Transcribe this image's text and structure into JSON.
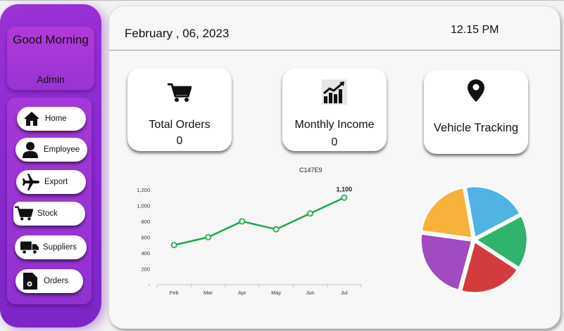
{
  "sidebar": {
    "greeting": "Good Morning",
    "user": "Admin",
    "nav": [
      {
        "label": "Home",
        "icon": "home-icon"
      },
      {
        "label": "Employee",
        "icon": "user-icon"
      },
      {
        "label": "Export",
        "icon": "airplane-icon"
      },
      {
        "label": "Stock",
        "icon": "cart-icon"
      },
      {
        "label": "Suppliers",
        "icon": "truck-icon"
      },
      {
        "label": "Orders",
        "icon": "document-icon"
      }
    ]
  },
  "header": {
    "date": "February , 06, 2023",
    "time": "12.15 PM"
  },
  "cards": [
    {
      "title": "Total Orders",
      "value": "0",
      "icon": "cart-icon"
    },
    {
      "title": "Monthly Income",
      "value": "0",
      "icon": "growth-chart-icon"
    },
    {
      "title": "Vehicle Tracking",
      "icon": "map-pin-icon"
    }
  ],
  "colors": {
    "sidebar": "#8a2ad0",
    "line": "#1fa84f"
  },
  "chart_data": [
    {
      "type": "line",
      "title": "C147E9",
      "categories": [
        "Feb",
        "Mar",
        "Apr",
        "May",
        "Jun",
        "Jul"
      ],
      "values": [
        500,
        600,
        800,
        700,
        900,
        1100
      ],
      "data_labels": {
        "Jul": "1,100"
      },
      "yticks": [
        "-",
        "200",
        "400",
        "600",
        "800",
        "1,000",
        "1,200"
      ],
      "ylim": [
        0,
        1200
      ],
      "grid": false
    },
    {
      "type": "pie",
      "slices": [
        {
          "color": "#4fb3e3",
          "value": 20
        },
        {
          "color": "#2fb36c",
          "value": 17
        },
        {
          "color": "#d23c3c",
          "value": 20
        },
        {
          "color": "#a04bc0",
          "value": 23
        },
        {
          "color": "#f7b23b",
          "value": 20
        }
      ]
    }
  ]
}
